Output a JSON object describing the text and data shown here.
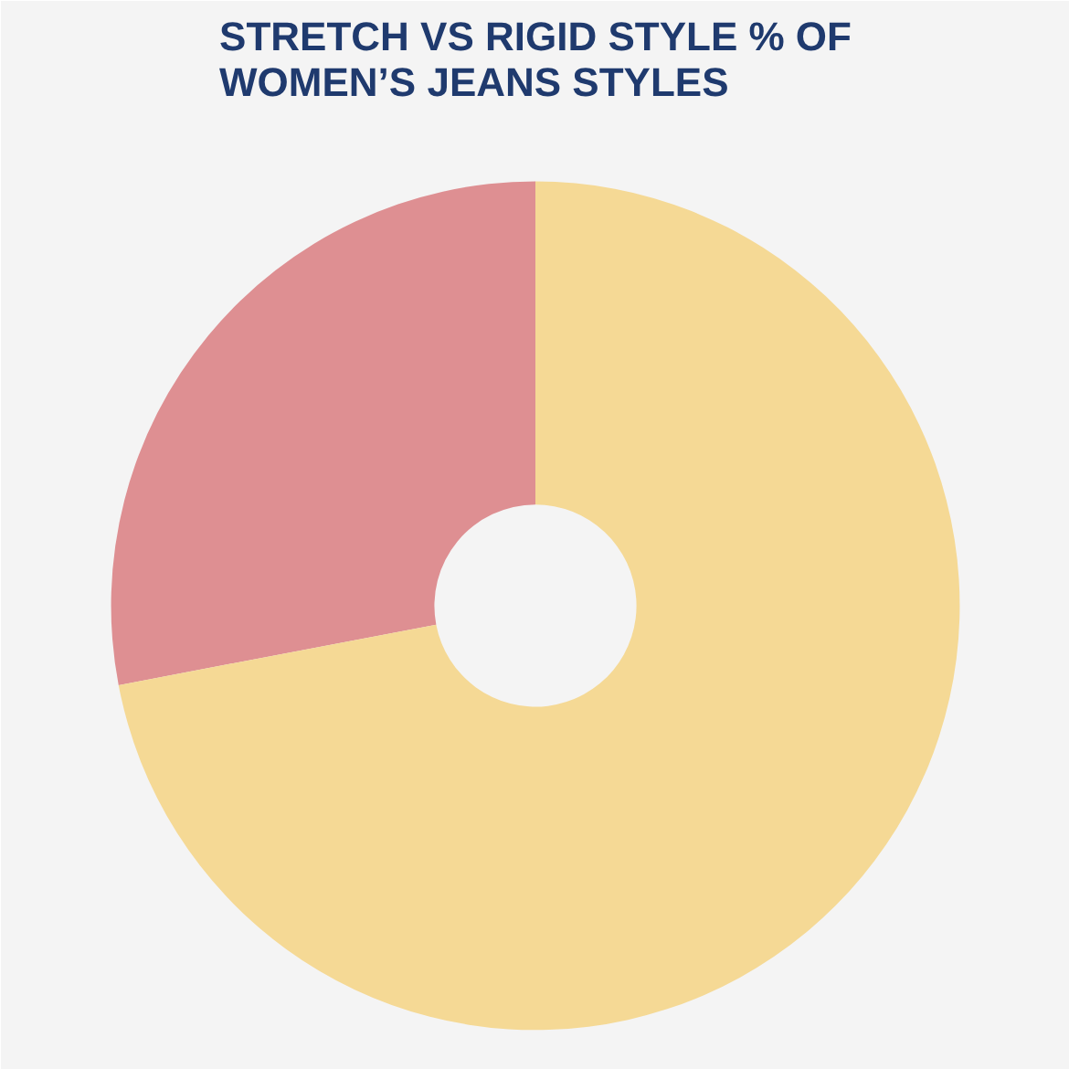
{
  "chart_data": {
    "type": "donut",
    "title": "STRETCH VS RIGID STYLE % OF\nWOMEN’S JEANS STYLES",
    "categories": [
      null,
      null
    ],
    "values": [
      28,
      72
    ],
    "colors": [
      "#de8f92",
      "#f5d995"
    ]
  }
}
